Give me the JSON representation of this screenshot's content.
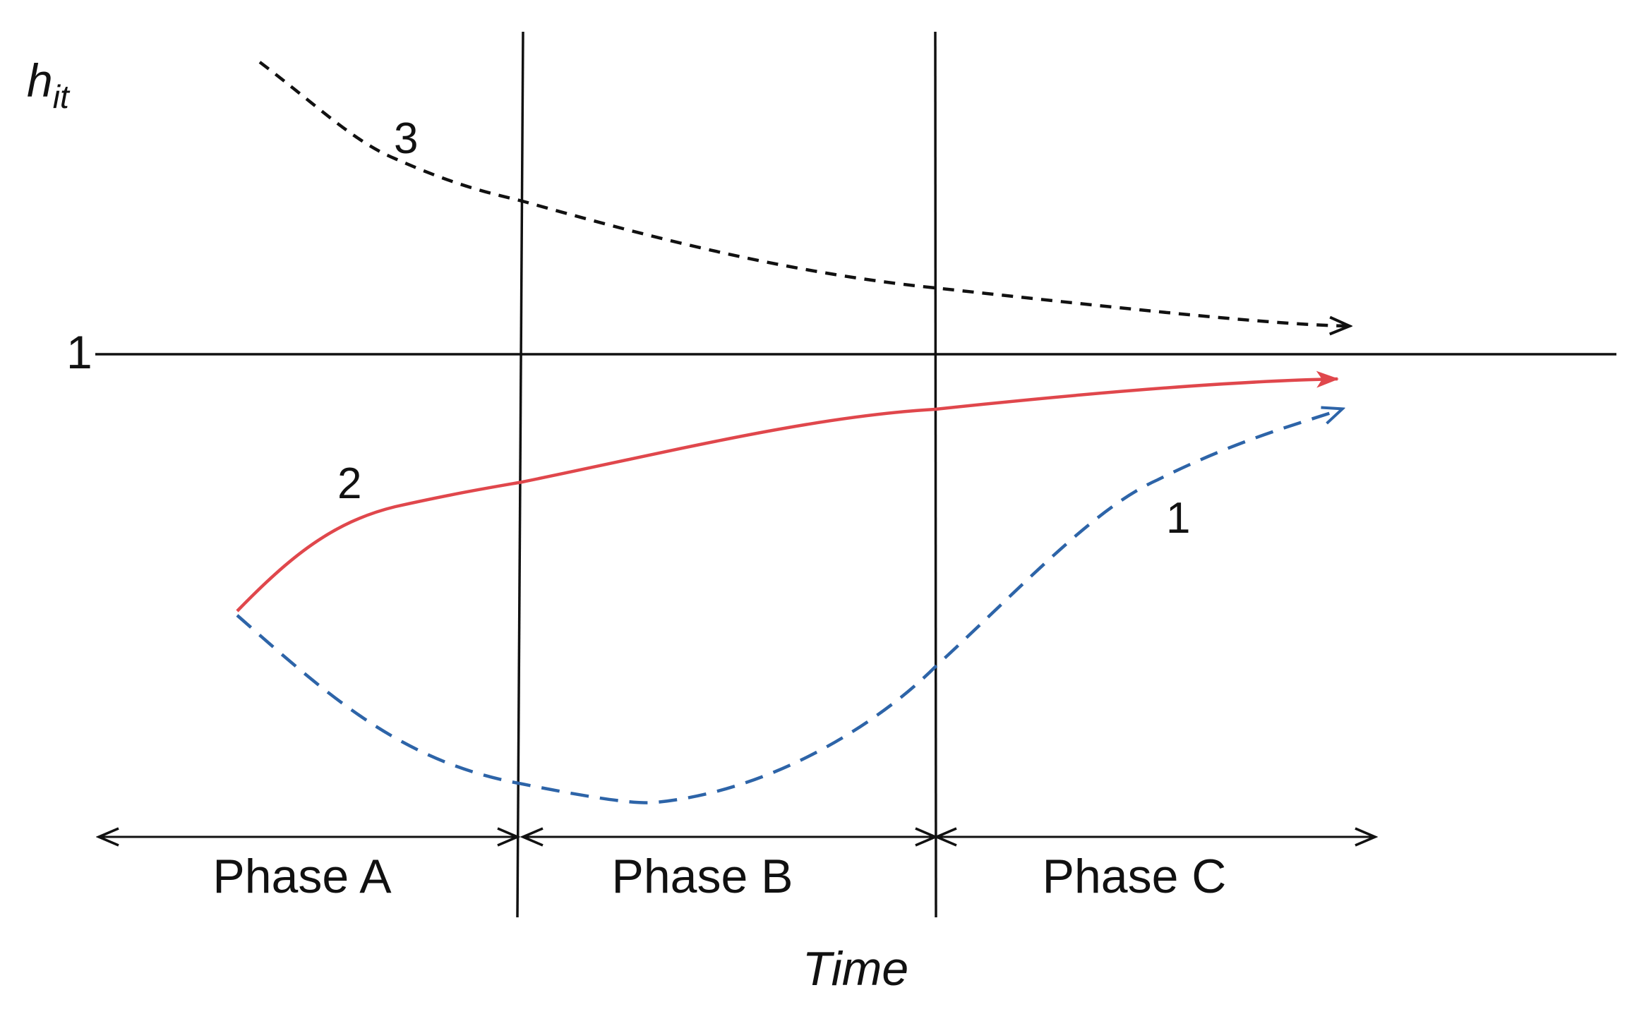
{
  "diagram": {
    "y_axis_label": {
      "main": "h",
      "subscript": "it"
    },
    "x_axis_label": "Time",
    "reference_level_label": "1",
    "phases": [
      {
        "label": "Phase A"
      },
      {
        "label": "Phase B"
      },
      {
        "label": "Phase C"
      }
    ],
    "curves": [
      {
        "label": "3",
        "color": "#111111",
        "style": "dashed"
      },
      {
        "label": "2",
        "color": "#e0474c",
        "style": "solid"
      },
      {
        "label": "1",
        "color": "#2d64a8",
        "style": "dashed"
      }
    ]
  }
}
